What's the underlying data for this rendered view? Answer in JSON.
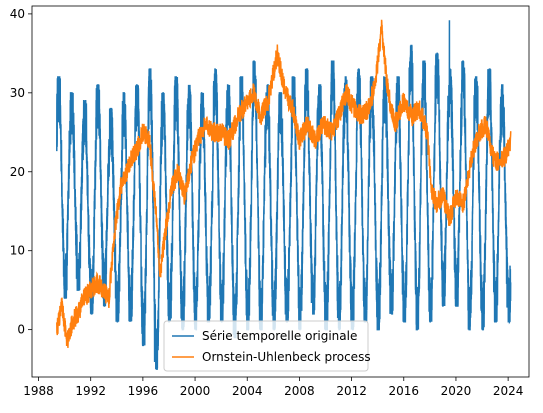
{
  "chart_data": {
    "type": "line",
    "title": "",
    "xlabel": "",
    "ylabel": "",
    "xlim": [
      1987.5,
      2025.6
    ],
    "ylim": [
      -6,
      41
    ],
    "x_ticks": [
      1988,
      1992,
      1996,
      2000,
      2004,
      2008,
      2012,
      2016,
      2020,
      2024
    ],
    "y_ticks": [
      0,
      10,
      20,
      30,
      40
    ],
    "legend_position": "lower center",
    "grid": false,
    "series": [
      {
        "name": "Série temporelle originale",
        "color": "#1f77b4",
        "style": "seasonal",
        "x_start": 1989.4,
        "x_end": 2024.2,
        "summer_peaks": [
          31,
          29,
          28,
          30,
          27,
          29,
          30,
          32,
          29,
          31,
          30,
          29,
          32,
          30,
          31,
          33,
          30,
          29,
          31,
          32,
          30,
          33,
          31,
          32,
          31,
          31,
          31,
          35,
          33,
          34,
          32,
          33,
          31,
          32,
          30
        ],
        "winter_troughs": [
          5,
          6,
          3,
          4,
          2,
          2,
          -1,
          -4,
          2,
          1,
          1,
          2,
          2,
          0,
          1,
          1,
          1,
          2,
          1,
          3,
          1,
          1,
          1,
          2,
          1,
          3,
          2,
          1,
          2,
          4,
          4,
          1,
          1,
          2,
          2
        ],
        "max_point": [
          2019.5,
          39.2
        ],
        "min_point": [
          1996.9,
          -4.1
        ]
      },
      {
        "name": "Ornstein-Uhlenbeck process",
        "color": "#ff7f0e",
        "style": "random-walk",
        "x_start": 1989.4,
        "x_end": 2024.2,
        "anchors": [
          [
            1989.4,
            0
          ],
          [
            1989.8,
            3
          ],
          [
            1990.2,
            -1.5
          ],
          [
            1990.6,
            1
          ],
          [
            1991.0,
            2
          ],
          [
            1991.5,
            4
          ],
          [
            1992.0,
            5
          ],
          [
            1992.5,
            6
          ],
          [
            1993.0,
            5
          ],
          [
            1993.4,
            4
          ],
          [
            1993.8,
            12
          ],
          [
            1994.3,
            18
          ],
          [
            1994.8,
            20
          ],
          [
            1995.2,
            22
          ],
          [
            1995.6,
            23
          ],
          [
            1996.0,
            25
          ],
          [
            1996.5,
            24
          ],
          [
            1997.0,
            15
          ],
          [
            1997.3,
            7
          ],
          [
            1997.7,
            12
          ],
          [
            1998.2,
            18
          ],
          [
            1998.7,
            20
          ],
          [
            1999.2,
            17
          ],
          [
            1999.7,
            21
          ],
          [
            2000.2,
            24
          ],
          [
            2000.8,
            26
          ],
          [
            2001.5,
            25
          ],
          [
            2002.0,
            25
          ],
          [
            2002.6,
            24
          ],
          [
            2003.3,
            27
          ],
          [
            2004.0,
            29
          ],
          [
            2004.5,
            30
          ],
          [
            2005.0,
            27
          ],
          [
            2005.6,
            29
          ],
          [
            2006.3,
            35
          ],
          [
            2006.9,
            30
          ],
          [
            2007.5,
            28
          ],
          [
            2008.0,
            24
          ],
          [
            2008.6,
            26
          ],
          [
            2009.2,
            24
          ],
          [
            2009.8,
            26
          ],
          [
            2010.5,
            25
          ],
          [
            2011.0,
            27
          ],
          [
            2011.6,
            30
          ],
          [
            2012.2,
            28
          ],
          [
            2012.8,
            27
          ],
          [
            2013.3,
            28
          ],
          [
            2013.8,
            31
          ],
          [
            2014.3,
            38
          ],
          [
            2014.8,
            30
          ],
          [
            2015.3,
            26
          ],
          [
            2016.0,
            29
          ],
          [
            2016.6,
            27
          ],
          [
            2017.2,
            28
          ],
          [
            2017.8,
            25
          ],
          [
            2018.1,
            18
          ],
          [
            2018.5,
            16
          ],
          [
            2019.0,
            17
          ],
          [
            2019.5,
            14
          ],
          [
            2020.0,
            17
          ],
          [
            2020.6,
            16
          ],
          [
            2021.2,
            22
          ],
          [
            2021.8,
            25
          ],
          [
            2022.3,
            26
          ],
          [
            2022.8,
            22
          ],
          [
            2023.3,
            21
          ],
          [
            2023.8,
            22
          ],
          [
            2024.2,
            24
          ]
        ]
      }
    ]
  }
}
